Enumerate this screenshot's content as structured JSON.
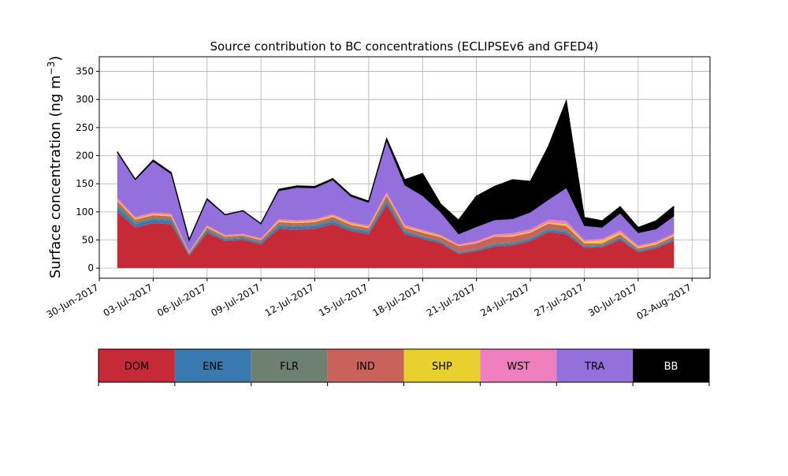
{
  "chart_data": {
    "type": "area",
    "stacked": true,
    "title": "Source contribution to BC concentrations (ECLIPSEv6 and GFED4)",
    "ylabel": "Surface concentration (ng m",
    "ylabel_superscript": "−3",
    "ylabel_suffix": ")",
    "xlabel": "",
    "x_ticks": [
      "30-Jun-2017",
      "03-Jul-2017",
      "06-Jul-2017",
      "09-Jul-2017",
      "12-Jul-2017",
      "15-Jul-2017",
      "18-Jul-2017",
      "21-Jul-2017",
      "24-Jul-2017",
      "27-Jul-2017",
      "30-Jul-2017",
      "02-Aug-2017"
    ],
    "y_ticks": [
      0,
      50,
      100,
      150,
      200,
      250,
      300,
      350
    ],
    "xlim": [
      "2017-06-30",
      "2017-08-03"
    ],
    "ylim": [
      -18,
      376
    ],
    "grid": true,
    "legend_placement": "bottom (separate color bar)",
    "x": [
      "2017-07-01",
      "2017-07-02",
      "2017-07-03",
      "2017-07-04",
      "2017-07-05",
      "2017-07-06",
      "2017-07-07",
      "2017-07-08",
      "2017-07-09",
      "2017-07-10",
      "2017-07-11",
      "2017-07-12",
      "2017-07-13",
      "2017-07-14",
      "2017-07-15",
      "2017-07-16",
      "2017-07-17",
      "2017-07-18",
      "2017-07-19",
      "2017-07-20",
      "2017-07-21",
      "2017-07-22",
      "2017-07-23",
      "2017-07-24",
      "2017-07-25",
      "2017-07-26",
      "2017-07-27",
      "2017-07-28",
      "2017-07-29",
      "2017-07-30",
      "2017-07-31",
      "2017-08-01"
    ],
    "series": [
      {
        "name": "DOM",
        "color": "#c62a36",
        "values": [
          100,
          72,
          80,
          78,
          22,
          62,
          48,
          50,
          42,
          70,
          68,
          70,
          78,
          66,
          60,
          112,
          60,
          52,
          44,
          25,
          30,
          38,
          40,
          48,
          64,
          60,
          36,
          37,
          50,
          28,
          35,
          48
        ]
      },
      {
        "name": "ENE",
        "color": "#3a78b0",
        "values": [
          8,
          6,
          6,
          6,
          2,
          4,
          3,
          3,
          3,
          5,
          5,
          5,
          5,
          4,
          4,
          6,
          4,
          3,
          3,
          2,
          2,
          3,
          3,
          3,
          4,
          4,
          2,
          2,
          3,
          2,
          2,
          3
        ]
      },
      {
        "name": "FLR",
        "color": "#6e8070",
        "values": [
          6,
          4,
          4,
          4,
          1,
          3,
          2,
          2,
          2,
          3,
          3,
          3,
          4,
          3,
          3,
          5,
          3,
          2,
          2,
          2,
          2,
          3,
          3,
          3,
          3,
          3,
          2,
          2,
          3,
          2,
          2,
          2
        ]
      },
      {
        "name": "IND",
        "color": "#c9625a",
        "values": [
          5,
          4,
          4,
          4,
          2,
          3,
          3,
          3,
          3,
          4,
          4,
          4,
          4,
          4,
          4,
          6,
          5,
          6,
          6,
          10,
          10,
          12,
          10,
          9,
          8,
          8,
          4,
          3,
          4,
          3,
          3,
          4
        ]
      },
      {
        "name": "SHP",
        "color": "#e8d12e",
        "values": [
          2,
          2,
          2,
          2,
          1,
          2,
          1,
          1,
          1,
          2,
          2,
          2,
          2,
          2,
          2,
          2,
          2,
          2,
          2,
          1,
          1,
          1,
          2,
          2,
          2,
          3,
          3,
          5,
          3,
          2,
          2,
          2
        ]
      },
      {
        "name": "WST",
        "color": "#f07fbf",
        "values": [
          4,
          3,
          3,
          3,
          1,
          2,
          2,
          2,
          2,
          3,
          3,
          3,
          3,
          3,
          3,
          4,
          3,
          3,
          2,
          2,
          3,
          3,
          4,
          4,
          5,
          6,
          3,
          3,
          4,
          3,
          3,
          3
        ]
      },
      {
        "name": "TRA",
        "color": "#9370db",
        "values": [
          80,
          65,
          90,
          70,
          20,
          45,
          35,
          40,
          25,
          50,
          58,
          55,
          60,
          45,
          40,
          90,
          70,
          60,
          40,
          18,
          25,
          25,
          25,
          30,
          35,
          58,
          25,
          20,
          30,
          22,
          22,
          30
        ]
      },
      {
        "name": "BB",
        "color": "#000000",
        "values": [
          2,
          2,
          3,
          3,
          1,
          2,
          1,
          1,
          1,
          3,
          3,
          3,
          3,
          3,
          3,
          5,
          10,
          40,
          15,
          25,
          55,
          60,
          70,
          55,
          95,
          155,
          15,
          12,
          12,
          10,
          15,
          18
        ]
      }
    ]
  }
}
